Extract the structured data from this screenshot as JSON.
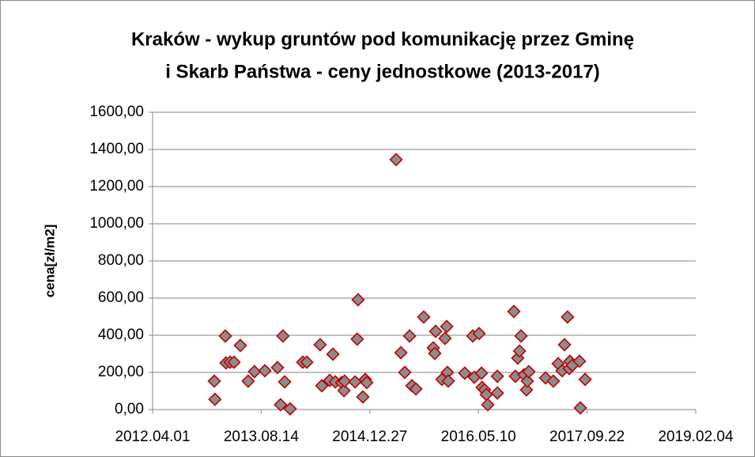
{
  "chart_data": {
    "type": "scatter",
    "title": [
      "Kraków - wykup gruntów pod komunikację przez Gminę",
      "i Skarb Państwa - ceny jednostkowe (2013-2017)"
    ],
    "y_label": "cena[zł/m2]",
    "x": [
      41287,
      41284,
      41335,
      41338,
      41357,
      41375,
      41404,
      41440,
      41469,
      41517,
      41575,
      41589,
      41600,
      41608,
      41633,
      41691,
      41710,
      41771,
      41779,
      41815,
      41830,
      41841,
      41870,
      41881,
      41884,
      41932,
      41942,
      41946,
      41968,
      41979,
      41986,
      42121,
      42143,
      42161,
      42183,
      42194,
      42212,
      42248,
      42292,
      42299,
      42303,
      42332,
      42346,
      42354,
      42357,
      42361,
      42437,
      42474,
      42481,
      42503,
      42514,
      42517,
      42528,
      42536,
      42543,
      42587,
      42587,
      42663,
      42670,
      42681,
      42689,
      42696,
      42710,
      42721,
      42725,
      42732,
      42809,
      42845,
      42867,
      42885,
      42896,
      42910,
      42918,
      42921,
      42932,
      42965,
      42969,
      42991
    ],
    "series": [
      {
        "name": "cena",
        "fill": "#8c8c8c",
        "stroke": "#c00000",
        "values": [
          55,
          153,
          396,
          251,
          255,
          255,
          345,
          153,
          204,
          209,
          226,
          26,
          396,
          149,
          4,
          255,
          255,
          349,
          128,
          157,
          298,
          149,
          145,
          102,
          153,
          149,
          379,
          591,
          68,
          162,
          145,
          1345,
          306,
          200,
          396,
          128,
          111,
          498,
          332,
          302,
          421,
          162,
          383,
          447,
          200,
          153,
          196,
          396,
          174,
          409,
          196,
          119,
          106,
          81,
          26,
          179,
          89,
          528,
          179,
          277,
          315,
          396,
          187,
          106,
          153,
          204,
          170,
          153,
          247,
          209,
          349,
          498,
          221,
          260,
          238,
          260,
          9,
          162
        ]
      }
    ],
    "xlim": [
      41000,
      43500
    ],
    "xticks": [
      {
        "value": 41000,
        "label": "2012.04.01"
      },
      {
        "value": 41500,
        "label": "2013.08.14"
      },
      {
        "value": 42000,
        "label": "2014.12.27"
      },
      {
        "value": 42500,
        "label": "2016.05.10"
      },
      {
        "value": 43000,
        "label": "2017.09.22"
      },
      {
        "value": 43500,
        "label": "2019.02.04"
      }
    ],
    "ylim": [
      0,
      1600
    ],
    "yticks": [
      {
        "value": 0,
        "label": "0,00"
      },
      {
        "value": 200,
        "label": "200,00"
      },
      {
        "value": 400,
        "label": "400,00"
      },
      {
        "value": 600,
        "label": "600,00"
      },
      {
        "value": 800,
        "label": "800,00"
      },
      {
        "value": 1000,
        "label": "1000,00"
      },
      {
        "value": 1200,
        "label": "1200,00"
      },
      {
        "value": 1400,
        "label": "1400,00"
      },
      {
        "value": 1600,
        "label": "1600,00"
      }
    ],
    "grid": true
  }
}
